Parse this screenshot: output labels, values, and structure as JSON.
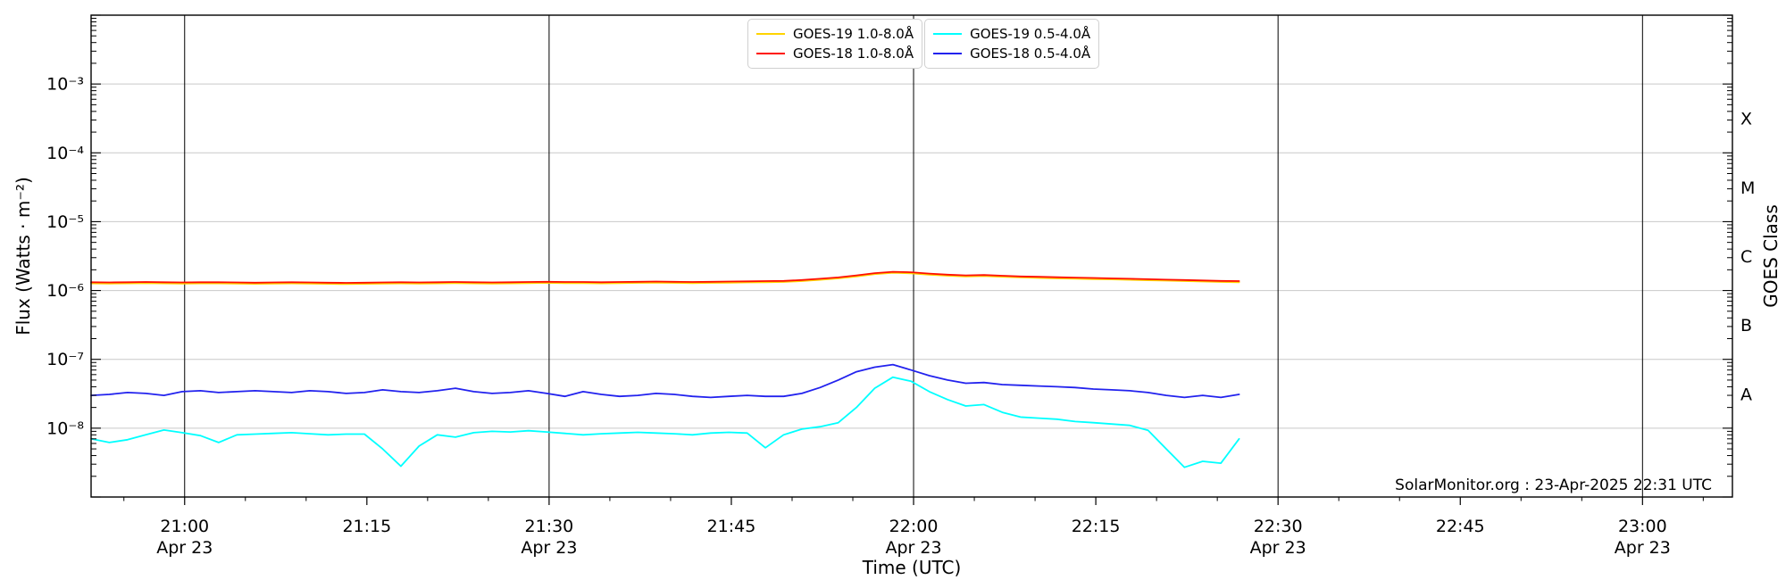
{
  "page": {
    "background": "#ffffff"
  },
  "chart_data": {
    "type": "line",
    "title": "",
    "xlabel": "Time (UTC)",
    "ylabel_left": "Flux (Watts · m⁻²)",
    "ylabel_right": "GOES Class",
    "attribution": "SolarMonitor.org : 23-Apr-2025 22:31 UTC",
    "legend_position": "top-center",
    "grid": {
      "horizontal_color": "#c9c9c9",
      "vertical_color": "#000000"
    },
    "x_axis": {
      "unit": "minutes after 21:00 UTC on 23-Apr-2025",
      "range_min": [
        -7.7,
        127.4
      ],
      "major_tick_every_min": 15,
      "minor_tick_every_min": 5,
      "gridline_minutes": [
        0,
        30,
        60,
        90,
        120
      ],
      "ticks": [
        {
          "min": 0,
          "label": "21:00",
          "date": "Apr 23"
        },
        {
          "min": 15,
          "label": "21:15"
        },
        {
          "min": 30,
          "label": "21:30",
          "date": "Apr 23"
        },
        {
          "min": 45,
          "label": "21:45"
        },
        {
          "min": 60,
          "label": "22:00",
          "date": "Apr 23"
        },
        {
          "min": 75,
          "label": "22:15"
        },
        {
          "min": 90,
          "label": "22:30",
          "date": "Apr 23"
        },
        {
          "min": 105,
          "label": "22:45"
        },
        {
          "min": 120,
          "label": "23:00",
          "date": "Apr 23"
        }
      ]
    },
    "y_axis": {
      "scale": "log",
      "range": [
        1e-09,
        0.01
      ],
      "gridlines": true,
      "ticks": [
        {
          "value": 0.001,
          "label": "10⁻³"
        },
        {
          "value": 0.0001,
          "label": "10⁻⁴"
        },
        {
          "value": 1e-05,
          "label": "10⁻⁵"
        },
        {
          "value": 1e-06,
          "label": "10⁻⁶"
        },
        {
          "value": 1e-07,
          "label": "10⁻⁷"
        },
        {
          "value": 1e-08,
          "label": "10⁻⁸"
        }
      ]
    },
    "right_axis_classes": [
      {
        "label": "X",
        "flux_mid": 0.000316
      },
      {
        "label": "M",
        "flux_mid": 3.16e-05
      },
      {
        "label": "C",
        "flux_mid": 3.16e-06
      },
      {
        "label": "B",
        "flux_mid": 3.16e-07
      },
      {
        "label": "A",
        "flux_mid": 3.16e-08
      }
    ],
    "t_minutes": [
      -7.7,
      -6.2,
      -4.7,
      -3.2,
      -1.7,
      -0.2,
      1.3,
      2.8,
      4.3,
      5.8,
      7.3,
      8.8,
      10.3,
      11.8,
      13.3,
      14.8,
      16.3,
      17.8,
      19.3,
      20.8,
      22.3,
      23.8,
      25.3,
      26.8,
      28.3,
      29.8,
      31.3,
      32.8,
      34.3,
      35.8,
      37.3,
      38.8,
      40.3,
      41.8,
      43.3,
      44.8,
      46.3,
      47.8,
      49.3,
      50.8,
      52.3,
      53.8,
      55.3,
      56.8,
      58.3,
      59.8,
      61.3,
      62.8,
      64.3,
      65.8,
      67.3,
      68.8,
      70.3,
      71.8,
      73.3,
      74.8,
      76.3,
      77.8,
      79.3,
      80.8,
      82.3,
      83.8,
      85.3,
      86.8
    ],
    "series": [
      {
        "name": "GOES-19 1.0-8.0Å",
        "color": "#ffd400",
        "scale": 1e-06,
        "values": [
          1.27,
          1.26,
          1.27,
          1.28,
          1.27,
          1.26,
          1.27,
          1.27,
          1.26,
          1.25,
          1.26,
          1.27,
          1.26,
          1.25,
          1.24,
          1.25,
          1.26,
          1.27,
          1.26,
          1.27,
          1.28,
          1.27,
          1.26,
          1.27,
          1.28,
          1.29,
          1.28,
          1.28,
          1.27,
          1.28,
          1.29,
          1.3,
          1.29,
          1.28,
          1.29,
          1.3,
          1.31,
          1.32,
          1.33,
          1.37,
          1.43,
          1.5,
          1.6,
          1.73,
          1.81,
          1.78,
          1.7,
          1.64,
          1.6,
          1.62,
          1.58,
          1.55,
          1.52,
          1.5,
          1.48,
          1.46,
          1.45,
          1.43,
          1.41,
          1.39,
          1.37,
          1.35,
          1.33,
          1.32
        ]
      },
      {
        "name": "GOES-18 1.0-8.0Å",
        "color": "#ff0f00",
        "scale": 1e-06,
        "values": [
          1.32,
          1.31,
          1.32,
          1.33,
          1.32,
          1.31,
          1.32,
          1.32,
          1.31,
          1.3,
          1.31,
          1.32,
          1.31,
          1.3,
          1.29,
          1.3,
          1.31,
          1.32,
          1.31,
          1.32,
          1.33,
          1.32,
          1.31,
          1.32,
          1.33,
          1.34,
          1.33,
          1.33,
          1.32,
          1.33,
          1.34,
          1.35,
          1.34,
          1.33,
          1.34,
          1.35,
          1.36,
          1.37,
          1.38,
          1.42,
          1.48,
          1.55,
          1.66,
          1.79,
          1.87,
          1.84,
          1.76,
          1.7,
          1.66,
          1.68,
          1.64,
          1.6,
          1.58,
          1.56,
          1.54,
          1.52,
          1.5,
          1.48,
          1.46,
          1.44,
          1.42,
          1.4,
          1.38,
          1.37
        ]
      },
      {
        "name": "GOES-19 0.5-4.0Å",
        "color": "#00ffff",
        "scale": 1e-09,
        "values": [
          7.0,
          6.2,
          6.8,
          8.0,
          9.4,
          8.6,
          7.8,
          6.2,
          8.0,
          8.2,
          8.4,
          8.6,
          8.3,
          8.0,
          8.2,
          8.2,
          5.0,
          2.8,
          5.5,
          8.0,
          7.4,
          8.6,
          9.0,
          8.8,
          9.2,
          8.8,
          8.4,
          8.0,
          8.3,
          8.5,
          8.7,
          8.5,
          8.3,
          8.0,
          8.5,
          8.7,
          8.5,
          5.2,
          8.0,
          9.7,
          10.5,
          12,
          20,
          38,
          55,
          48,
          34,
          26,
          21,
          22,
          17,
          14.5,
          14,
          13.5,
          12.5,
          12,
          11.5,
          11,
          9.3,
          5.0,
          2.7,
          3.3,
          3.1,
          7.0
        ]
      },
      {
        "name": "GOES-18 0.5-4.0Å",
        "color": "#2222ee",
        "scale": 1e-08,
        "values": [
          3.0,
          3.1,
          3.3,
          3.2,
          3.0,
          3.4,
          3.5,
          3.3,
          3.4,
          3.5,
          3.4,
          3.3,
          3.5,
          3.4,
          3.2,
          3.3,
          3.6,
          3.4,
          3.3,
          3.5,
          3.8,
          3.4,
          3.2,
          3.3,
          3.5,
          3.2,
          2.9,
          3.4,
          3.1,
          2.9,
          3.0,
          3.2,
          3.1,
          2.9,
          2.8,
          2.9,
          3.0,
          2.9,
          2.9,
          3.2,
          3.9,
          5.0,
          6.6,
          7.7,
          8.4,
          7.0,
          5.8,
          5.0,
          4.5,
          4.6,
          4.3,
          4.2,
          4.1,
          4.0,
          3.9,
          3.7,
          3.6,
          3.5,
          3.3,
          3.0,
          2.8,
          3.0,
          2.8,
          3.1
        ]
      }
    ]
  }
}
